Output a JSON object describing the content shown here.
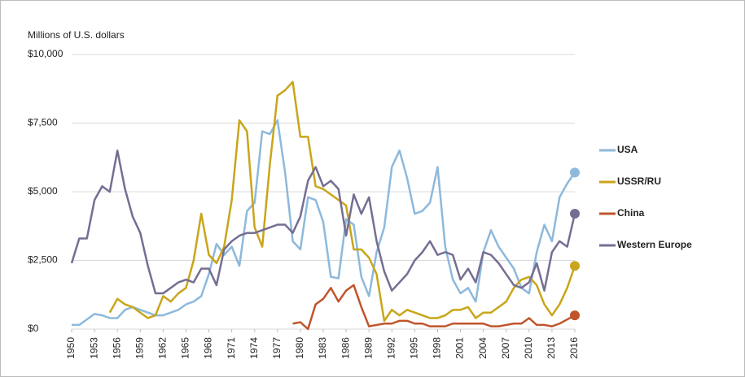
{
  "chart_data": {
    "type": "line",
    "y_axis_label": "Millions of U.S. dollars",
    "x": [
      1950,
      1951,
      1952,
      1953,
      1954,
      1955,
      1956,
      1957,
      1958,
      1959,
      1960,
      1961,
      1962,
      1963,
      1964,
      1965,
      1966,
      1967,
      1968,
      1969,
      1970,
      1971,
      1972,
      1973,
      1974,
      1975,
      1976,
      1977,
      1978,
      1979,
      1980,
      1981,
      1982,
      1983,
      1984,
      1985,
      1986,
      1987,
      1988,
      1989,
      1990,
      1991,
      1992,
      1993,
      1994,
      1995,
      1996,
      1997,
      1998,
      1999,
      2000,
      2001,
      2002,
      2003,
      2004,
      2005,
      2006,
      2007,
      2008,
      2009,
      2010,
      2011,
      2012,
      2013,
      2014,
      2015,
      2016
    ],
    "series": [
      {
        "name": "USA",
        "color": "#8db9dc",
        "values": [
          150,
          150,
          350,
          550,
          500,
          400,
          400,
          700,
          800,
          700,
          600,
          500,
          500,
          600,
          700,
          900,
          1000,
          1200,
          2000,
          3100,
          2700,
          3000,
          2300,
          4300,
          4600,
          7200,
          7100,
          7600,
          5700,
          3200,
          2900,
          4800,
          4700,
          3900,
          1900,
          1850,
          4000,
          3800,
          1900,
          1200,
          2800,
          3700,
          5900,
          6500,
          5500,
          4200,
          4300,
          4600,
          5900,
          3000,
          1800,
          1300,
          1500,
          1000,
          2800,
          3600,
          3000,
          2600,
          2200,
          1500,
          1300,
          2800,
          3800,
          3200,
          4800,
          5300,
          5700
        ]
      },
      {
        "name": "USSR/RU",
        "color": "#c9a51a",
        "values": [
          null,
          null,
          null,
          null,
          null,
          600,
          1100,
          900,
          800,
          600,
          400,
          500,
          1200,
          1000,
          1300,
          1500,
          2500,
          4200,
          2700,
          2400,
          3000,
          4700,
          7600,
          7200,
          3700,
          3000,
          6000,
          8500,
          8700,
          9000,
          7000,
          7000,
          5200,
          5100,
          4900,
          4700,
          4500,
          2900,
          2900,
          2600,
          2000,
          300,
          700,
          500,
          700,
          600,
          500,
          400,
          400,
          500,
          700,
          700,
          800,
          400,
          600,
          600,
          800,
          1000,
          1500,
          1800,
          1900,
          1600,
          900,
          500,
          900,
          1500,
          2300
        ]
      },
      {
        "name": "China",
        "color": "#c0552b",
        "values": [
          null,
          null,
          null,
          null,
          null,
          null,
          null,
          null,
          null,
          null,
          null,
          null,
          null,
          null,
          null,
          null,
          null,
          null,
          null,
          null,
          null,
          null,
          null,
          null,
          null,
          null,
          null,
          null,
          null,
          200,
          250,
          0,
          900,
          1100,
          1500,
          1000,
          1400,
          1600,
          800,
          100,
          150,
          200,
          200,
          300,
          300,
          200,
          200,
          100,
          100,
          100,
          200,
          200,
          200,
          200,
          200,
          100,
          100,
          150,
          200,
          200,
          400,
          150,
          150,
          100,
          200,
          350,
          500
        ]
      },
      {
        "name": "Western Europe",
        "color": "#756e93",
        "values": [
          2400,
          3300,
          3300,
          4700,
          5200,
          5000,
          6500,
          5100,
          4100,
          3500,
          2300,
          1300,
          1300,
          1500,
          1700,
          1800,
          1700,
          2200,
          2200,
          1600,
          2900,
          3200,
          3400,
          3500,
          3500,
          3600,
          3700,
          3800,
          3800,
          3500,
          4100,
          5400,
          5900,
          5200,
          5400,
          5100,
          3400,
          4900,
          4200,
          4800,
          3200,
          2100,
          1400,
          1700,
          2000,
          2500,
          2800,
          3200,
          2700,
          2800,
          2700,
          1800,
          2200,
          1700,
          2800,
          2700,
          2400,
          2000,
          1600,
          1500,
          1700,
          2400,
          1400,
          2800,
          3200,
          3000,
          4200
        ]
      }
    ],
    "xlim": [
      1950,
      2016
    ],
    "xticks": [
      1950,
      1953,
      1956,
      1959,
      1962,
      1965,
      1968,
      1971,
      1974,
      1977,
      1980,
      1983,
      1986,
      1989,
      1992,
      1995,
      1998,
      2001,
      2004,
      2007,
      2010,
      2013,
      2016
    ],
    "ylim": [
      0,
      10000
    ],
    "yticks": [
      {
        "value": 0,
        "label": "$0"
      },
      {
        "value": 2500,
        "label": "$2,500"
      },
      {
        "value": 5000,
        "label": "$5,000"
      },
      {
        "value": 7500,
        "label": "$7,500"
      },
      {
        "value": 10000,
        "label": "$10,000"
      }
    ],
    "grid": true,
    "legend": "right"
  }
}
